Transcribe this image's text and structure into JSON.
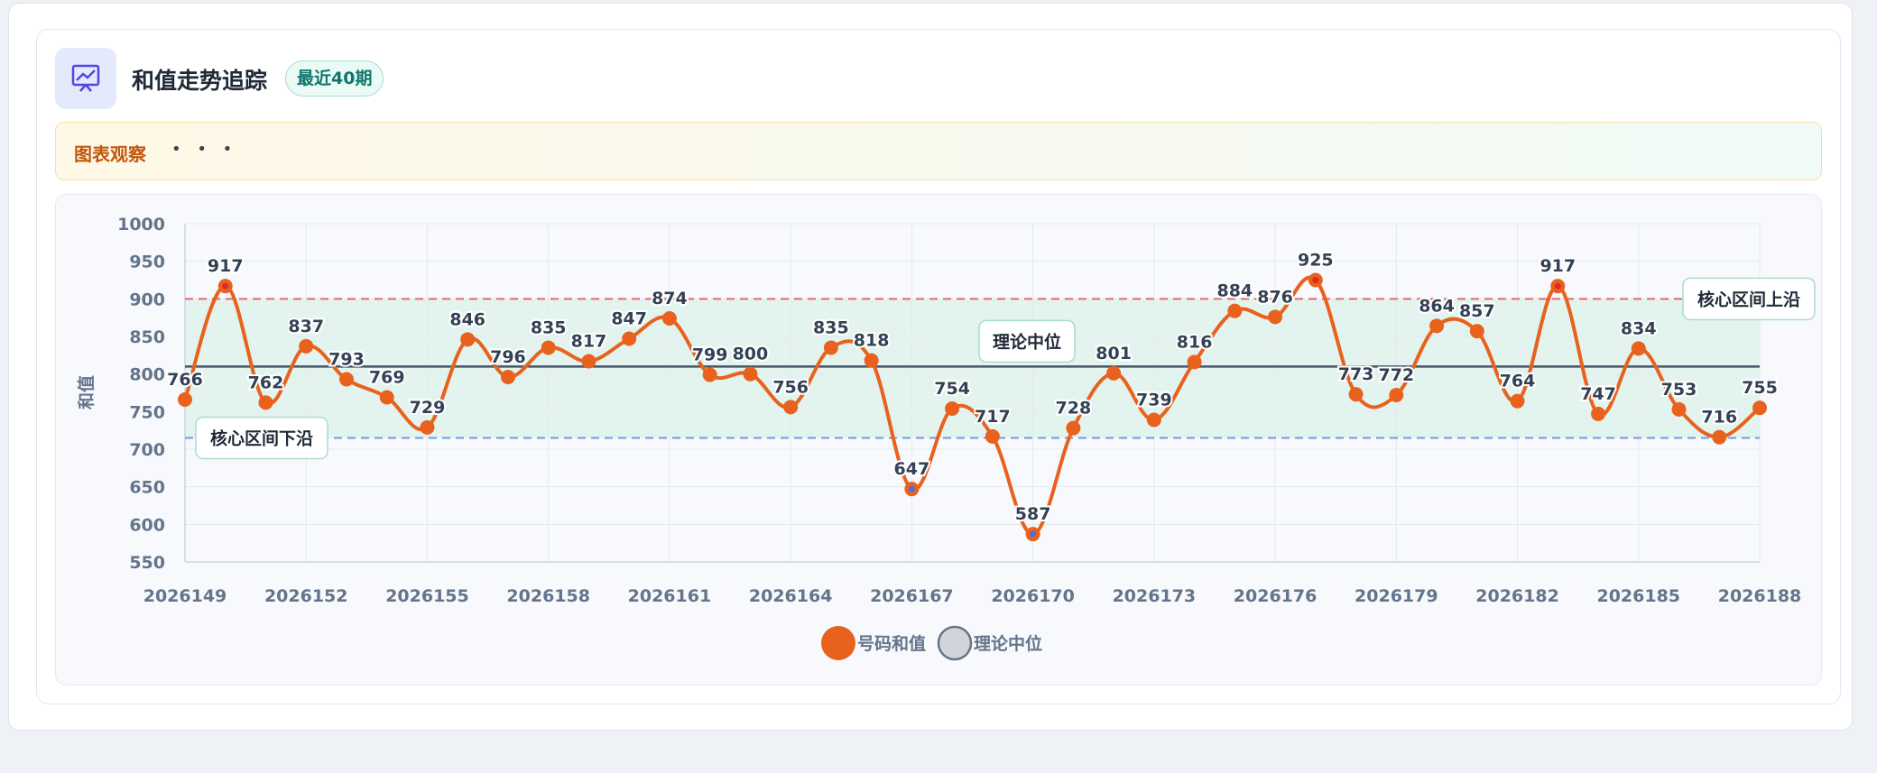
{
  "header": {
    "title": "和值走势追踪",
    "badge": "最近40期"
  },
  "notice": {
    "label": "图表观察",
    "more": "• • •"
  },
  "chart_data": {
    "type": "line",
    "x": [
      2026149,
      2026150,
      2026151,
      2026152,
      2026153,
      2026154,
      2026155,
      2026156,
      2026157,
      2026158,
      2026159,
      2026160,
      2026161,
      2026162,
      2026163,
      2026164,
      2026165,
      2026166,
      2026167,
      2026168,
      2026169,
      2026170,
      2026171,
      2026172,
      2026173,
      2026174,
      2026175,
      2026176,
      2026177,
      2026178,
      2026179,
      2026180,
      2026181,
      2026182,
      2026183,
      2026184,
      2026185,
      2026186,
      2026187,
      2026188
    ],
    "xlim": [
      2026149,
      2026188
    ],
    "xticks": [
      2026149,
      2026152,
      2026155,
      2026158,
      2026161,
      2026164,
      2026167,
      2026170,
      2026173,
      2026176,
      2026179,
      2026182,
      2026185,
      2026188
    ],
    "ylabel": "和值",
    "ylim": [
      550,
      1000
    ],
    "yticks": [
      550,
      600,
      650,
      700,
      750,
      800,
      850,
      900,
      950,
      1000
    ],
    "grid": true,
    "series": [
      {
        "name": "号码和值",
        "color": "#e8621e",
        "values": [
          766,
          917,
          762,
          837,
          793,
          769,
          729,
          846,
          796,
          835,
          817,
          847,
          874,
          799,
          800,
          756,
          835,
          818,
          647,
          754,
          717,
          587,
          728,
          801,
          739,
          816,
          884,
          876,
          925,
          773,
          772,
          864,
          857,
          764,
          917,
          747,
          834,
          753,
          716,
          755
        ]
      }
    ],
    "reference_lines": [
      {
        "name": "核心区间上沿",
        "value": 900,
        "color": "#e06b6b"
      },
      {
        "name": "理论中位",
        "value": 810,
        "color": "#475569"
      },
      {
        "name": "核心区间下沿",
        "value": 715,
        "color": "#6d9ae8"
      }
    ],
    "median_legend": {
      "name": "理论中位",
      "color": "#d1d5db"
    }
  }
}
